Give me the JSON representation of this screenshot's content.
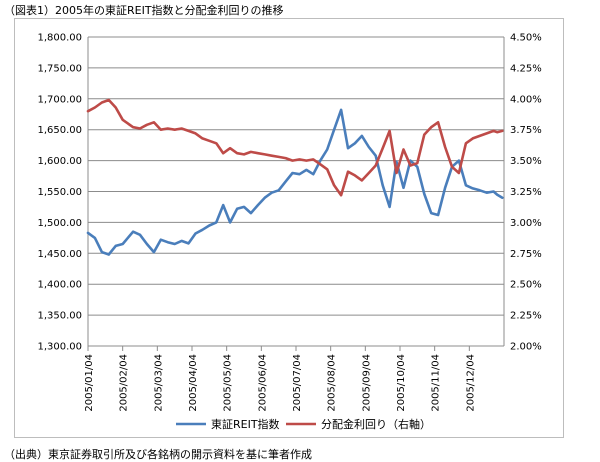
{
  "title": "（図表1）2005年の東証REIT指数と分配金利回りの推移",
  "source": "（出典）東京証券取引所及び各銘柄の開示資料を基に筆者作成",
  "chart_data": {
    "type": "line",
    "title": "",
    "xlabel": "",
    "ylabel": "",
    "x_tick_labels": [
      "2005/01/04",
      "2005/02/04",
      "2005/03/04",
      "2005/04/04",
      "2005/05/04",
      "2005/06/04",
      "2005/07/04",
      "2005/08/04",
      "2005/09/04",
      "2005/10/04",
      "2005/11/04",
      "2005/12/04"
    ],
    "y_left": {
      "range": [
        1300,
        1800
      ],
      "ticks": [
        "1,300.00",
        "1,350.00",
        "1,400.00",
        "1,450.00",
        "1,500.00",
        "1,550.00",
        "1,600.00",
        "1,650.00",
        "1,700.00",
        "1,750.00",
        "1,800.00"
      ]
    },
    "y_right": {
      "range": [
        2.0,
        4.5
      ],
      "ticks": [
        "2.00%",
        "2.25%",
        "2.50%",
        "2.75%",
        "3.00%",
        "3.25%",
        "3.50%",
        "3.75%",
        "4.00%",
        "4.25%",
        "4.50%"
      ]
    },
    "grid": "horizontal",
    "legend_position": "bottom",
    "series": [
      {
        "name": "東証REIT指数",
        "axis": "left",
        "color": "#4a7ebb",
        "x": [
          0,
          0.2,
          0.4,
          0.6,
          0.8,
          1.0,
          1.3,
          1.5,
          1.7,
          1.9,
          2.1,
          2.3,
          2.5,
          2.7,
          2.9,
          3.1,
          3.3,
          3.5,
          3.7,
          3.9,
          4.1,
          4.3,
          4.5,
          4.7,
          4.9,
          5.1,
          5.3,
          5.5,
          5.7,
          5.9,
          6.1,
          6.3,
          6.5,
          6.7,
          6.9,
          7.1,
          7.3,
          7.5,
          7.7,
          7.9,
          8.1,
          8.3,
          8.5,
          8.7,
          8.9,
          9.1,
          9.3,
          9.5,
          9.7,
          9.9,
          10.1,
          10.3,
          10.5,
          10.7,
          10.9,
          11.1,
          11.3,
          11.5,
          11.7,
          11.8,
          11.95
        ],
        "y": [
          1483,
          1475,
          1452,
          1448,
          1462,
          1465,
          1485,
          1480,
          1465,
          1452,
          1472,
          1468,
          1465,
          1470,
          1466,
          1482,
          1488,
          1495,
          1500,
          1528,
          1500,
          1522,
          1525,
          1515,
          1528,
          1540,
          1548,
          1552,
          1566,
          1580,
          1578,
          1585,
          1578,
          1600,
          1618,
          1650,
          1682,
          1620,
          1628,
          1640,
          1622,
          1608,
          1560,
          1525,
          1598,
          1556,
          1600,
          1590,
          1546,
          1515,
          1512,
          1556,
          1590,
          1600,
          1560,
          1555,
          1552,
          1548,
          1550,
          1545,
          1540
        ]
      },
      {
        "name": "分配金利回り（右軸）",
        "axis": "right",
        "color": "#be4b48",
        "x": [
          0,
          0.2,
          0.4,
          0.6,
          0.8,
          1.0,
          1.3,
          1.5,
          1.7,
          1.9,
          2.1,
          2.3,
          2.5,
          2.7,
          2.9,
          3.1,
          3.3,
          3.5,
          3.7,
          3.9,
          4.1,
          4.3,
          4.5,
          4.7,
          4.9,
          5.1,
          5.3,
          5.5,
          5.7,
          5.9,
          6.1,
          6.3,
          6.5,
          6.7,
          6.9,
          7.1,
          7.3,
          7.5,
          7.7,
          7.9,
          8.1,
          8.3,
          8.5,
          8.7,
          8.9,
          9.1,
          9.3,
          9.5,
          9.7,
          9.9,
          10.1,
          10.3,
          10.5,
          10.7,
          10.9,
          11.1,
          11.3,
          11.5,
          11.7,
          11.8,
          11.95
        ],
        "y": [
          3.9,
          3.93,
          3.97,
          3.99,
          3.93,
          3.83,
          3.77,
          3.76,
          3.79,
          3.81,
          3.75,
          3.76,
          3.75,
          3.76,
          3.74,
          3.72,
          3.68,
          3.66,
          3.64,
          3.56,
          3.6,
          3.56,
          3.55,
          3.57,
          3.56,
          3.55,
          3.54,
          3.53,
          3.52,
          3.5,
          3.51,
          3.5,
          3.51,
          3.47,
          3.43,
          3.3,
          3.22,
          3.41,
          3.38,
          3.34,
          3.4,
          3.46,
          3.6,
          3.74,
          3.4,
          3.59,
          3.46,
          3.48,
          3.71,
          3.77,
          3.81,
          3.61,
          3.45,
          3.4,
          3.64,
          3.68,
          3.7,
          3.72,
          3.74,
          3.73,
          3.74
        ]
      }
    ]
  }
}
